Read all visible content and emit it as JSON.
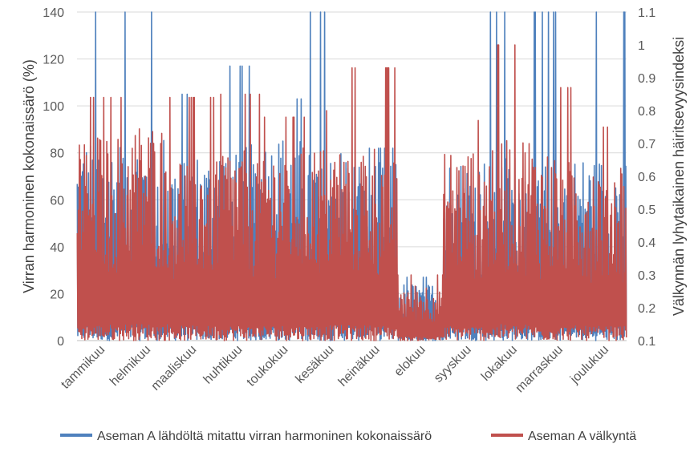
{
  "colors": {
    "series_a": "#4F81BD",
    "series_b": "#C0504D",
    "grid": "#D9D9D9",
    "axis": "#BFBFBF"
  },
  "chart_data": {
    "type": "line",
    "title": "",
    "ylabel_left": "Virran harmoninen kokonaissärö (%)",
    "ylabel_right": "Välkynnän lyhytaikainen häiritsevyysindeksi",
    "ylim_left": [
      0,
      140
    ],
    "ylim_right": [
      0.1,
      1.1
    ],
    "yticks_left": [
      "0",
      "20",
      "40",
      "60",
      "80",
      "100",
      "120",
      "140"
    ],
    "yticks_right": [
      "0.1",
      "0.2",
      "0.3",
      "0.4",
      "0.5",
      "0.6",
      "0.7",
      "0.8",
      "0.9",
      "1",
      "1.1"
    ],
    "categories": [
      "tammikuu",
      "helmikuu",
      "maaliskuu",
      "huhtikuu",
      "toukokuu",
      "kesäkuu",
      "heinäkuu",
      "elokuu",
      "syyskuu",
      "lokakuu",
      "marraskuu",
      "joulukuu"
    ],
    "legend": [
      {
        "name": "Aseman A lähdöltä mitattu virran harmoninen kokonaissärö",
        "axis": "left"
      },
      {
        "name": "Aseman A välkyntä",
        "axis": "right"
      }
    ],
    "series": [
      {
        "name": "Aseman A lähdöltä mitattu virran harmoninen kokonaissärö",
        "axis": "left",
        "monthly_peaks": [
          140,
          140,
          105,
          117,
          103,
          140,
          82,
          27,
          140,
          140,
          140,
          140
        ],
        "monthly_typical_max": [
          88,
          90,
          82,
          88,
          90,
          85,
          80,
          25,
          80,
          82,
          80,
          80
        ],
        "baseline_min": 0
      },
      {
        "name": "Aseman A välkyntä",
        "axis": "right",
        "monthly_peaks": [
          0.84,
          0.87,
          0.84,
          0.85,
          0.78,
          0.8,
          0.93,
          0.3,
          0.77,
          1.0,
          0.87,
          0.75
        ],
        "monthly_typical_max": [
          0.75,
          0.78,
          0.7,
          0.72,
          0.72,
          0.72,
          0.72,
          0.28,
          0.7,
          0.75,
          0.7,
          0.68
        ],
        "baseline_min": 0.1
      }
    ]
  }
}
